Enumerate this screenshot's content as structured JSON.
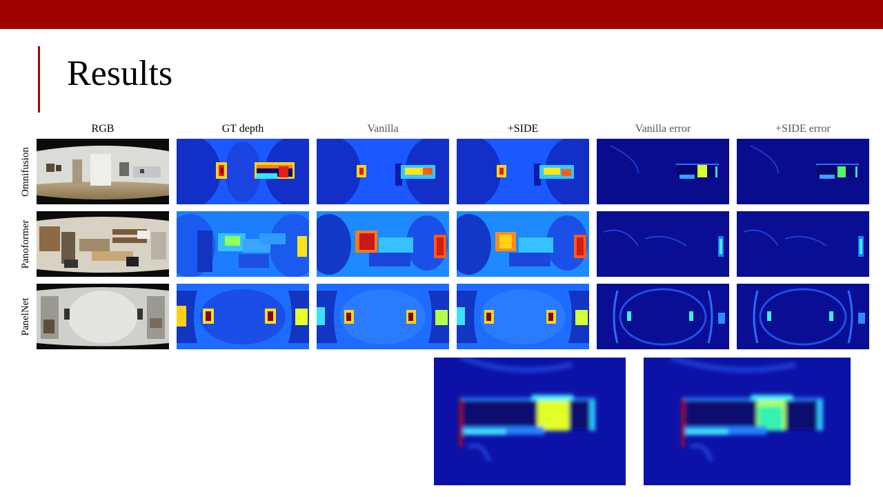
{
  "slide": {
    "title": "Results"
  },
  "figure": {
    "columns": [
      "RGB",
      "GT depth",
      "Vanilla",
      "+SIDE",
      "Vanilla error",
      "+SIDE error"
    ],
    "rows": [
      "Omnifusion",
      "Panoformer",
      "PanelNet"
    ]
  },
  "colors": {
    "banner": "#a10000",
    "jet_blue": "#1b4bff",
    "jet_dark": "#0a0a7a",
    "jet_red": "#e8201a",
    "jet_yellow": "#ffe51a"
  }
}
